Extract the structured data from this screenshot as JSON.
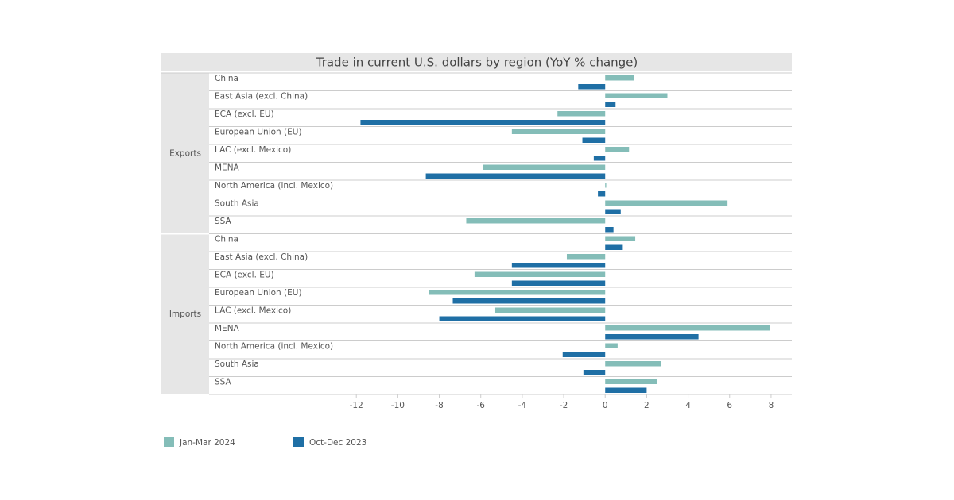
{
  "chart_data": {
    "type": "grouped-hbar",
    "title": "Trade in current U.S. dollars by region (YoY % change)",
    "groups": [
      {
        "name": "Exports",
        "categories": [
          "China",
          "East Asia (excl. China)",
          "ECA (excl. EU)",
          "European Union (EU)",
          "LAC (excl. Mexico)",
          "MENA",
          "North America (incl. Mexico)",
          "South Asia",
          "SSA"
        ]
      },
      {
        "name": "Imports",
        "categories": [
          "China",
          "East Asia (excl. China)",
          "ECA (excl. EU)",
          "European Union (EU)",
          "LAC (excl. Mexico)",
          "MENA",
          "North America (incl. Mexico)",
          "South Asia",
          "SSA"
        ]
      }
    ],
    "series": [
      {
        "name": "Jan-Mar 2024",
        "color": "#84bdb8",
        "values": [
          1.4,
          3.0,
          -2.3,
          -4.5,
          1.15,
          -5.9,
          0.05,
          5.9,
          -6.7,
          1.45,
          -1.85,
          -6.3,
          -8.5,
          -5.3,
          7.95,
          0.6,
          2.7,
          2.5
        ]
      },
      {
        "name": "Oct-Dec 2023",
        "color": "#1f6fa5",
        "values": [
          -1.3,
          0.5,
          -11.8,
          -1.1,
          -0.55,
          -8.65,
          -0.35,
          0.75,
          0.4,
          0.85,
          -4.5,
          -4.5,
          -7.35,
          -8.0,
          4.5,
          -2.05,
          -1.05,
          2.0
        ]
      }
    ],
    "xlim": [
      -19.1,
      9
    ],
    "xticks": [
      -12,
      -10,
      -8,
      -6,
      -4,
      -2,
      0,
      2,
      4,
      6,
      8
    ]
  }
}
